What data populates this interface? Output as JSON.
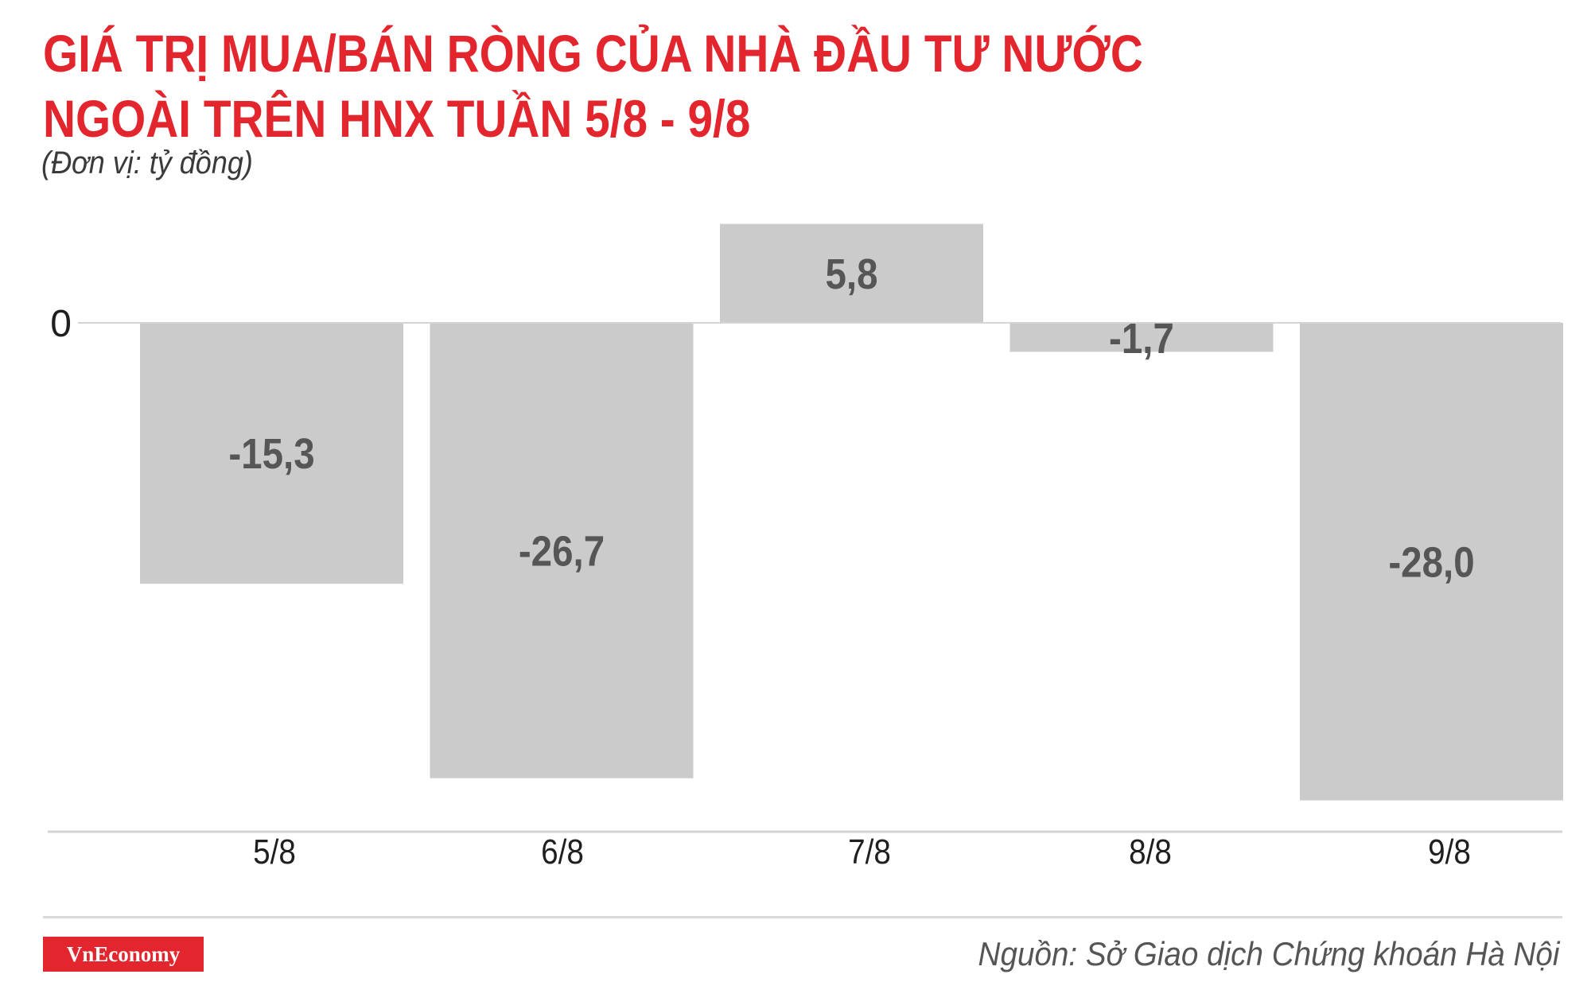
{
  "title": "GIÁ TRỊ MUA/BÁN RÒNG CỦA NHÀ ĐẦU TƯ NƯỚC NGOÀI TRÊN HNX TUẦN 5/8 - 9/8",
  "unit_label": "(Đơn vị: tỷ đồng)",
  "source": "Nguồn: Sở Giao dịch Chứng khoán Hà Nội",
  "brand": "VnEconomy",
  "colors": {
    "title": "#e3262e",
    "bar": "#cccbcb",
    "bar_label": "#565656",
    "brand_bg": "#e3262e"
  },
  "chart_data": {
    "type": "bar",
    "categories": [
      "5/8",
      "6/8",
      "7/8",
      "8/8",
      "9/8"
    ],
    "values": [
      -15.3,
      -26.7,
      5.8,
      -1.7,
      -28.0
    ],
    "value_labels": [
      "-15,3",
      "-26,7",
      "5,8",
      "-1,7",
      "-28,0"
    ],
    "y_ticks": [
      0
    ],
    "y_tick_labels": [
      "0"
    ],
    "grid": false,
    "legend": "none"
  }
}
